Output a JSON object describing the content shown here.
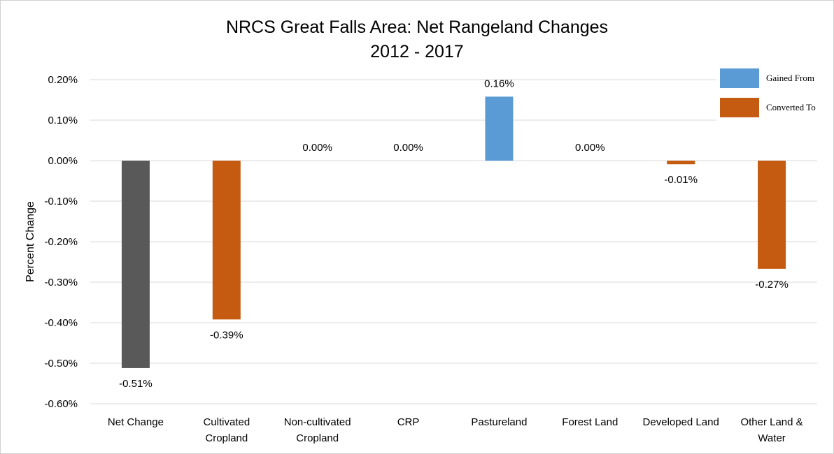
{
  "chart_data": {
    "type": "bar",
    "title": [
      "NRCS Great Falls Area: Net Rangeland Changes",
      "2012 - 2017"
    ],
    "ylabel": "Percent Change",
    "xlabel": "",
    "ylim": [
      -0.6,
      0.2
    ],
    "yticks": [
      {
        "value": 0.2,
        "label": "0.20%"
      },
      {
        "value": 0.1,
        "label": "0.10%"
      },
      {
        "value": 0.0,
        "label": "0.00%"
      },
      {
        "value": -0.1,
        "label": "-0.10%"
      },
      {
        "value": -0.2,
        "label": "-0.20%"
      },
      {
        "value": -0.3,
        "label": "-0.30%"
      },
      {
        "value": -0.4,
        "label": "-0.40%"
      },
      {
        "value": -0.5,
        "label": "-0.50%"
      },
      {
        "value": -0.6,
        "label": "-0.60%"
      }
    ],
    "grid": true,
    "legend_position": "top-right",
    "categories": [
      [
        "Net Change"
      ],
      [
        "Cultivated",
        "Cropland"
      ],
      [
        "Non-cultivated",
        "Cropland"
      ],
      [
        "CRP"
      ],
      [
        "Pastureland"
      ],
      [
        "Forest Land"
      ],
      [
        "Developed Land"
      ],
      [
        "Other Land &",
        "Water"
      ]
    ],
    "values": [
      -0.512,
      -0.392,
      0.0,
      0.0,
      0.158,
      0.0,
      -0.009,
      -0.267
    ],
    "data_labels": [
      "-0.51%",
      "-0.39%",
      "0.00%",
      "0.00%",
      "0.16%",
      "0.00%",
      "-0.01%",
      "-0.27%"
    ],
    "bar_types": [
      "net",
      "converted",
      "converted",
      "converted",
      "gained",
      "converted",
      "converted",
      "converted"
    ],
    "colors": {
      "net": "#595959",
      "gained": "#5b9bd5",
      "converted": "#c55a11"
    },
    "legend": [
      {
        "label": "Gained From",
        "type": "gained"
      },
      {
        "label": "Converted To",
        "type": "converted"
      }
    ]
  }
}
